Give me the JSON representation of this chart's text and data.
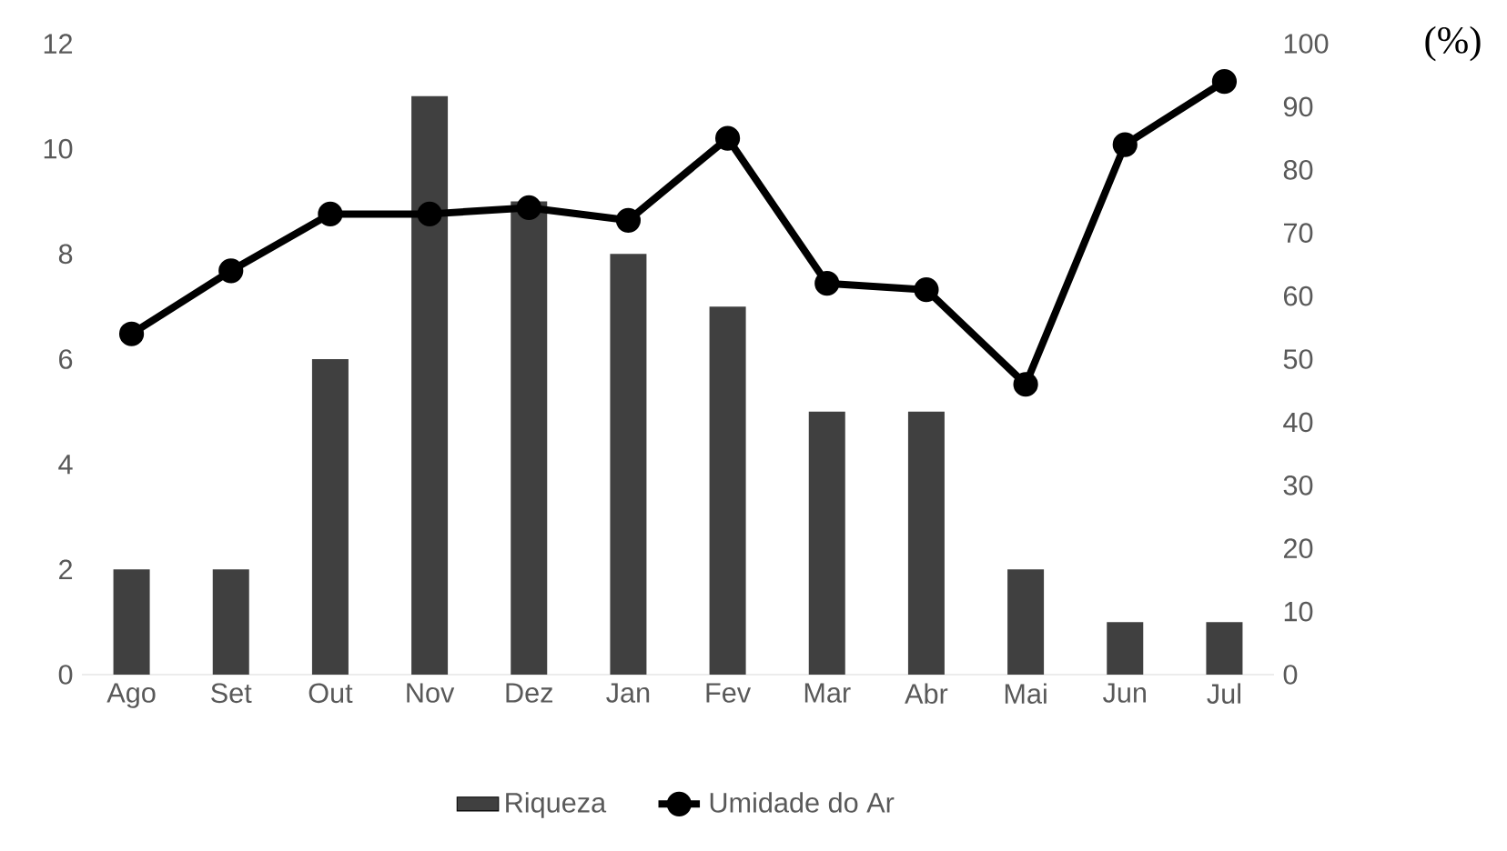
{
  "chart_data": {
    "type": "bar",
    "categories": [
      "Ago",
      "Set",
      "Out",
      "Nov",
      "Dez",
      "Jan",
      "Fev",
      "Mar",
      "Abr",
      "Mai",
      "Jun",
      "Jul"
    ],
    "series": [
      {
        "name": "Riqueza",
        "color": "#404040",
        "values": [
          2,
          2,
          6,
          11,
          9,
          8,
          7,
          5,
          5,
          2,
          1,
          1
        ]
      },
      {
        "name": "Umidade do Ar",
        "type": "line",
        "axis": "y2",
        "color": "#000000",
        "marker": "circle",
        "line_style": "solid",
        "values": [
          54,
          64,
          73,
          73,
          74,
          72,
          85,
          62,
          61,
          46,
          84,
          94
        ]
      }
    ],
    "ylim": [
      0,
      12
    ],
    "yticks": [
      0,
      2,
      4,
      6,
      8,
      10,
      12
    ],
    "y2lim": [
      0,
      100
    ],
    "y2ticks": [
      0,
      10,
      20,
      30,
      40,
      50,
      60,
      70,
      80,
      90,
      100
    ],
    "y2label": "(%)",
    "legend": "bottom",
    "grid": false
  }
}
